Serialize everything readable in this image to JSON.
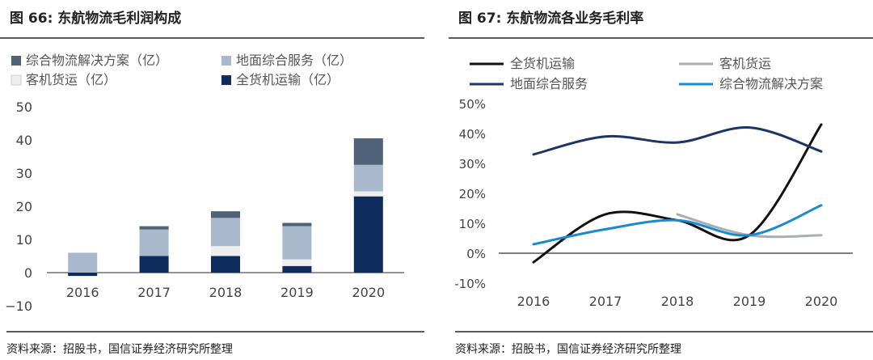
{
  "chart_data": [
    {
      "type": "bar",
      "stacked": true,
      "title_prefix": "图 66:",
      "title": "东航物流毛利润构成",
      "categories": [
        "2016",
        "2017",
        "2018",
        "2019",
        "2020"
      ],
      "series": [
        {
          "name": "全货机运输（亿）",
          "color": "#0f2a5c",
          "values": [
            -1,
            5,
            5,
            2,
            23
          ]
        },
        {
          "name": "客机货运（亿）",
          "color": "#eeeeee",
          "values": [
            0,
            0,
            3,
            2,
            1.5
          ]
        },
        {
          "name": "地面综合服务（亿）",
          "color": "#a8b9cd",
          "values": [
            6,
            8,
            8.5,
            10,
            8
          ]
        },
        {
          "name": "综合物流解决方案（亿）",
          "color": "#4f6279",
          "values": [
            0,
            1,
            2,
            1,
            8
          ]
        }
      ],
      "legend_order": [
        "综合物流解决方案（亿）",
        "地面综合服务（亿）",
        "客机货运（亿）",
        "全货机运输（亿）"
      ],
      "ylim": [
        -10,
        50
      ],
      "yticks": [
        "50",
        "40",
        "30",
        "20",
        "10",
        "0",
        "−10"
      ],
      "ytick_values": [
        50,
        40,
        30,
        20,
        10,
        0,
        -10
      ],
      "source": "资料来源：招股书，国信证券经济研究所整理"
    },
    {
      "type": "line",
      "title_prefix": "图 67:",
      "title": "东航物流各业务毛利率",
      "x": [
        "2016",
        "2017",
        "2018",
        "2019",
        "2020"
      ],
      "series": [
        {
          "name": "全货机运输",
          "color": "#111111",
          "values": [
            -3,
            13,
            11,
            6,
            43
          ]
        },
        {
          "name": "客机货运",
          "color": "#a9aeb3",
          "values": [
            null,
            null,
            13,
            6,
            6
          ]
        },
        {
          "name": "地面综合服务",
          "color": "#1c3466",
          "values": [
            33,
            39,
            37,
            42,
            34
          ]
        },
        {
          "name": "综合物流解决方案",
          "color": "#1a8ad0",
          "values": [
            3,
            8,
            11,
            6,
            16
          ]
        }
      ],
      "legend_order": [
        "全货机运输",
        "客机货运",
        "地面综合服务",
        "综合物流解决方案"
      ],
      "ylim": [
        -10,
        50
      ],
      "yticks": [
        "50%",
        "40%",
        "30%",
        "20%",
        "10%",
        "0%",
        "-10%"
      ],
      "ytick_values": [
        50,
        40,
        30,
        20,
        10,
        0,
        -10
      ],
      "source": "资料来源：招股书，国信证券经济研究所整理"
    }
  ]
}
